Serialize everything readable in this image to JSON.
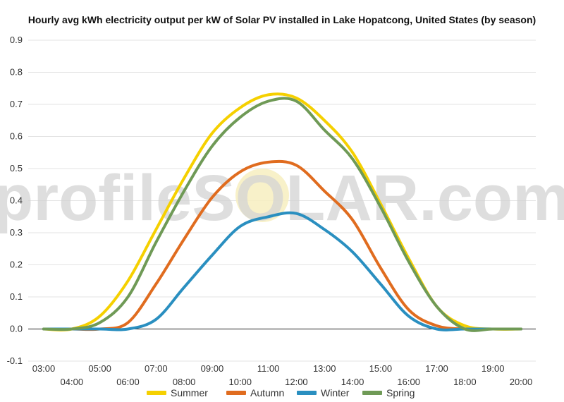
{
  "chart_data": {
    "type": "line",
    "title": "Hourly avg kWh electricity output per kW of Solar PV installed in Lake Hopatcong, United States (by season)",
    "watermark": "profileSOLAR.com",
    "xlabel": "",
    "ylabel": "",
    "ylim": [
      -0.1,
      0.9
    ],
    "yticks": [
      "0.9",
      "0.8",
      "0.7",
      "0.6",
      "0.5",
      "0.4",
      "0.3",
      "0.2",
      "0.1",
      "0.0",
      "-0.1"
    ],
    "grid": true,
    "legend_position": "bottom",
    "x": [
      "03:00",
      "04:00",
      "05:00",
      "06:00",
      "07:00",
      "08:00",
      "09:00",
      "10:00",
      "11:00",
      "12:00",
      "13:00",
      "14:00",
      "15:00",
      "16:00",
      "17:00",
      "18:00",
      "19:00",
      "20:00"
    ],
    "series": [
      {
        "name": "Summer",
        "color": "#f5d000",
        "values": [
          0.0,
          0.0,
          0.04,
          0.15,
          0.31,
          0.47,
          0.61,
          0.69,
          0.73,
          0.72,
          0.65,
          0.55,
          0.39,
          0.22,
          0.07,
          0.01,
          0.0,
          0.0
        ]
      },
      {
        "name": "Autumn",
        "color": "#e06c1f",
        "values": [
          0.0,
          0.0,
          0.0,
          0.02,
          0.14,
          0.28,
          0.41,
          0.49,
          0.52,
          0.51,
          0.43,
          0.34,
          0.19,
          0.06,
          0.01,
          0.0,
          0.0,
          0.0
        ]
      },
      {
        "name": "Winter",
        "color": "#2a8fc0",
        "values": [
          0.0,
          0.0,
          0.0,
          0.0,
          0.03,
          0.13,
          0.23,
          0.32,
          0.35,
          0.36,
          0.31,
          0.24,
          0.14,
          0.04,
          0.0,
          0.0,
          0.0,
          0.0
        ]
      },
      {
        "name": "Spring",
        "color": "#6f9a56",
        "values": [
          0.0,
          0.0,
          0.02,
          0.1,
          0.27,
          0.43,
          0.57,
          0.66,
          0.71,
          0.71,
          0.62,
          0.53,
          0.38,
          0.21,
          0.07,
          0.0,
          0.0,
          0.0
        ]
      }
    ]
  }
}
